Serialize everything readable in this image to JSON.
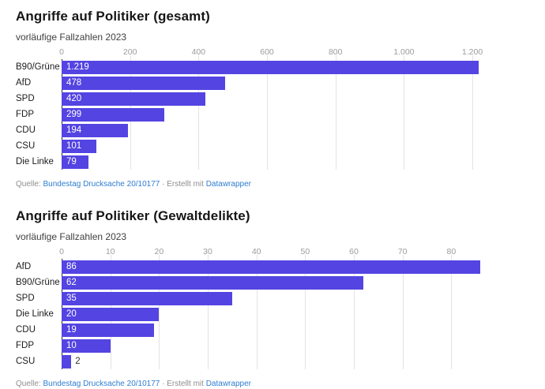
{
  "colors": {
    "bar": "#5444e2",
    "link": "#2e7dd1",
    "title": "#161616",
    "subtitle": "#3f3f3f",
    "axis_label": "#9c9c9c",
    "gridline": "#e3e3e3",
    "zero_line": "#2e2e2e",
    "category_label": "#1c1c1c",
    "bar_value_inside": "#ffffff",
    "footer_text": "#8e8e8e"
  },
  "footer": {
    "prefix": "Quelle: ",
    "source_link": "Bundestag Drucksache 20/10177",
    "separator": " · ",
    "credit_text": "Erstellt mit ",
    "credit_link": "Datawrapper"
  },
  "chart_data": [
    {
      "type": "bar",
      "orientation": "horizontal",
      "title": "Angriffe auf Politiker (gesamt)",
      "subtitle": "vorläufige Fallzahlen 2023",
      "categories": [
        "B90/Grüne",
        "AfD",
        "SPD",
        "FDP",
        "CDU",
        "CSU",
        "Die Linke"
      ],
      "values": [
        1219,
        478,
        420,
        299,
        194,
        101,
        79
      ],
      "value_labels": [
        "1.219",
        "478",
        "420",
        "299",
        "194",
        "101",
        "79"
      ],
      "x_tick_labels": [
        "0",
        "200",
        "400",
        "600",
        "800",
        "1.000",
        "1.200"
      ],
      "x_tick_values": [
        0,
        200,
        400,
        600,
        800,
        1000,
        1200
      ],
      "xlim": [
        0,
        1366
      ],
      "grid": true,
      "value_label_position": "inside-start"
    },
    {
      "type": "bar",
      "orientation": "horizontal",
      "title": "Angriffe auf Politiker (Gewaltdelikte)",
      "subtitle": "vorläufige Fallzahlen 2023",
      "categories": [
        "AfD",
        "B90/Grüne",
        "SPD",
        "Die Linke",
        "CDU",
        "FDP",
        "CSU"
      ],
      "values": [
        86,
        62,
        35,
        20,
        19,
        10,
        2
      ],
      "value_labels": [
        "86",
        "62",
        "35",
        "20",
        "19",
        "10",
        "2"
      ],
      "x_tick_labels": [
        "0",
        "10",
        "20",
        "30",
        "40",
        "50",
        "60",
        "70",
        "80"
      ],
      "x_tick_values": [
        0,
        10,
        20,
        30,
        40,
        50,
        60,
        70,
        80
      ],
      "xlim": [
        0,
        96
      ],
      "grid": true,
      "value_label_position": "inside-start"
    }
  ]
}
